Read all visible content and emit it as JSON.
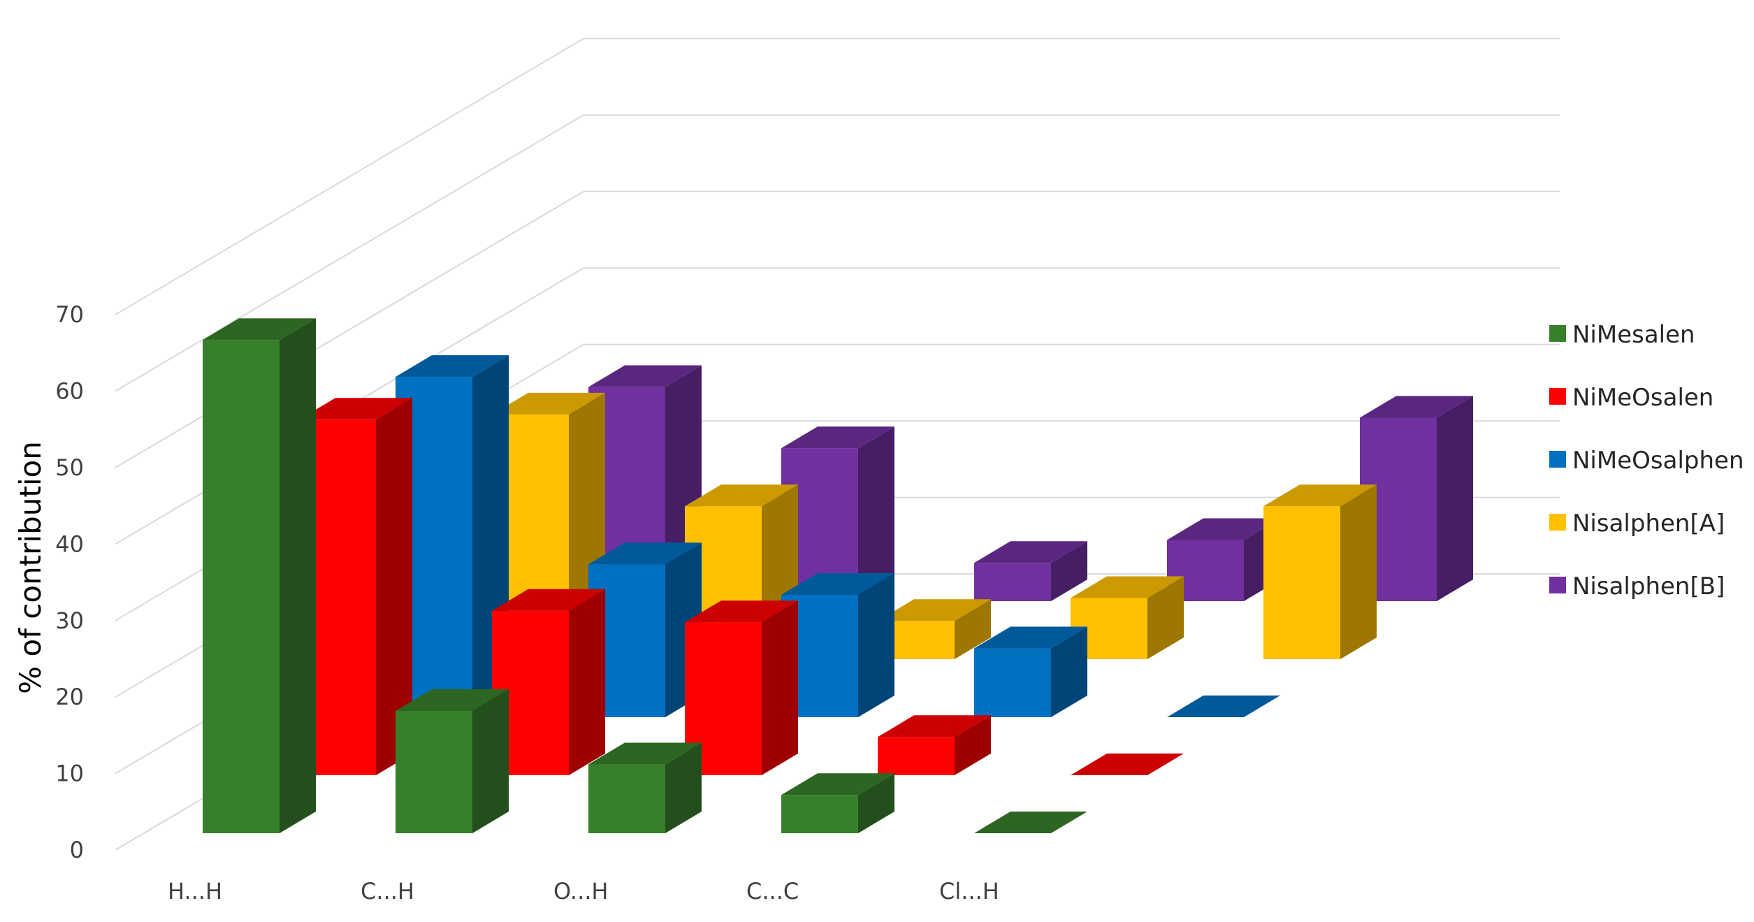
{
  "chart_data": {
    "type": "bar",
    "subtype": "3d-column",
    "title": "",
    "xlabel": "",
    "ylabel": "% of contribution",
    "ylim": [
      0,
      70
    ],
    "yticks": [
      0,
      10,
      20,
      30,
      40,
      50,
      60,
      70
    ],
    "grid": true,
    "legend_position": "right",
    "categories": [
      "H...H",
      "C...H",
      "O...H",
      "C...C",
      "Cl...H"
    ],
    "series": [
      {
        "name": "NiMesalen",
        "color": "#37802b",
        "values": [
          64.5,
          16,
          9,
          5,
          0
        ]
      },
      {
        "name": "NiMeOsalen",
        "color": "#ff0000",
        "values": [
          46.5,
          21.5,
          20,
          5,
          0
        ]
      },
      {
        "name": "NiMeOsalphen",
        "color": "#0070c0",
        "values": [
          44.5,
          20,
          16,
          9,
          0
        ]
      },
      {
        "name": "Nisalphen[A]",
        "color": "#ffc000",
        "values": [
          32,
          20,
          5,
          8,
          20
        ]
      },
      {
        "name": "Nisalphen[B]",
        "color": "#7030a0",
        "values": [
          28,
          20,
          5,
          8,
          24
        ]
      }
    ]
  }
}
